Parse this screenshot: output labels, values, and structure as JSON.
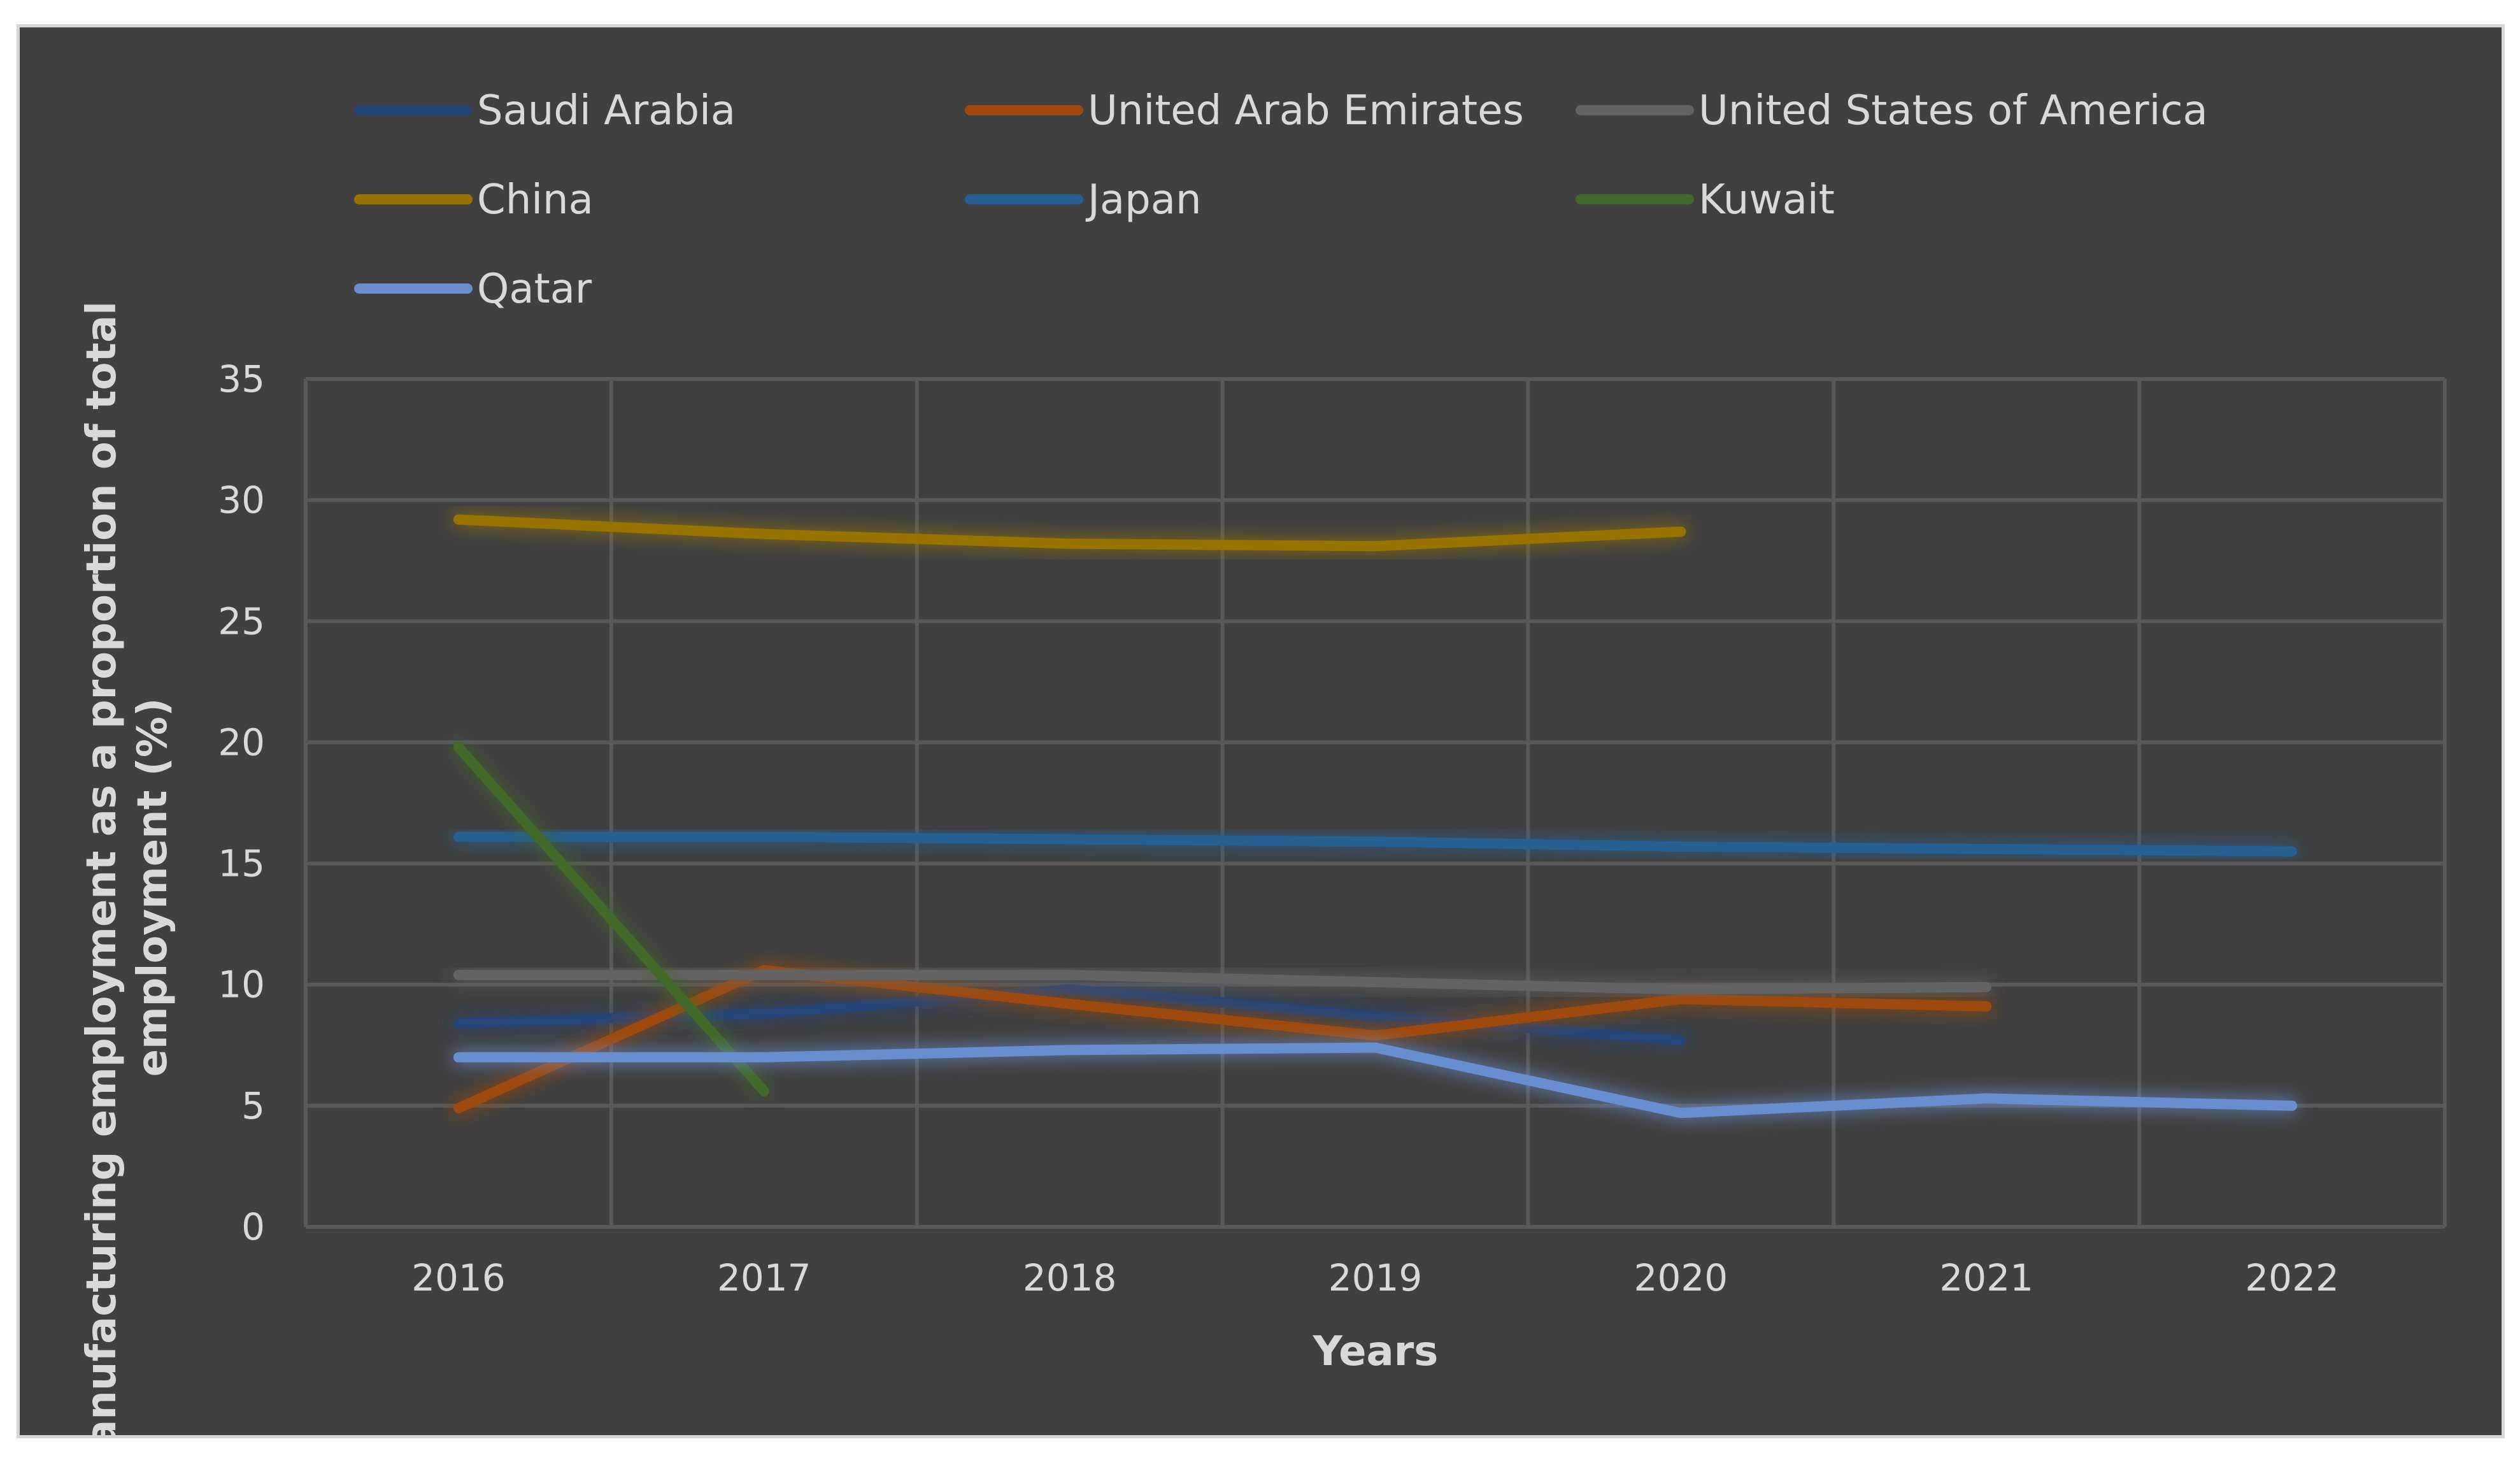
{
  "chart_data": {
    "type": "line",
    "title": "",
    "xlabel": "Years",
    "ylabel": "Manufacturing employment as a proportion of total employment (%)",
    "ylabel_lines": [
      "Manufacturing employment as a proportion of total",
      "employment (%)"
    ],
    "x": [
      "2016",
      "2017",
      "2018",
      "2019",
      "2020",
      "2021",
      "2022"
    ],
    "ylim": [
      0,
      35
    ],
    "yticks": [
      0,
      5,
      10,
      15,
      20,
      25,
      30,
      35
    ],
    "ytick_labels": [
      "0",
      "5",
      "10",
      "15",
      "20",
      "25",
      "30",
      "35"
    ],
    "grid": true,
    "legend_position": "top",
    "series": [
      {
        "name": "Saudi Arabia",
        "color": "#264478",
        "values": [
          8.4,
          8.8,
          9.8,
          8.7,
          7.7,
          null,
          null
        ]
      },
      {
        "name": "United Arab Emirates",
        "color": "#9E480E",
        "values": [
          4.9,
          10.6,
          9.2,
          7.9,
          9.4,
          9.1,
          null
        ]
      },
      {
        "name": "United States of America",
        "color": "#636363",
        "values": [
          10.4,
          10.4,
          10.4,
          10.1,
          9.8,
          9.9,
          null
        ]
      },
      {
        "name": "China",
        "color": "#997300",
        "values": [
          29.2,
          28.6,
          28.2,
          28.1,
          28.7,
          null,
          null
        ]
      },
      {
        "name": "Japan",
        "color": "#255E91",
        "values": [
          16.1,
          16.1,
          16.0,
          15.9,
          15.7,
          15.6,
          15.5
        ]
      },
      {
        "name": "Kuwait",
        "color": "#43682B",
        "values": [
          19.8,
          5.6,
          null,
          null,
          null,
          null,
          null
        ]
      },
      {
        "name": "Qatar",
        "color": "#698ED0",
        "values": [
          7.0,
          7.0,
          7.3,
          7.4,
          4.7,
          5.3,
          5.0
        ]
      }
    ]
  }
}
